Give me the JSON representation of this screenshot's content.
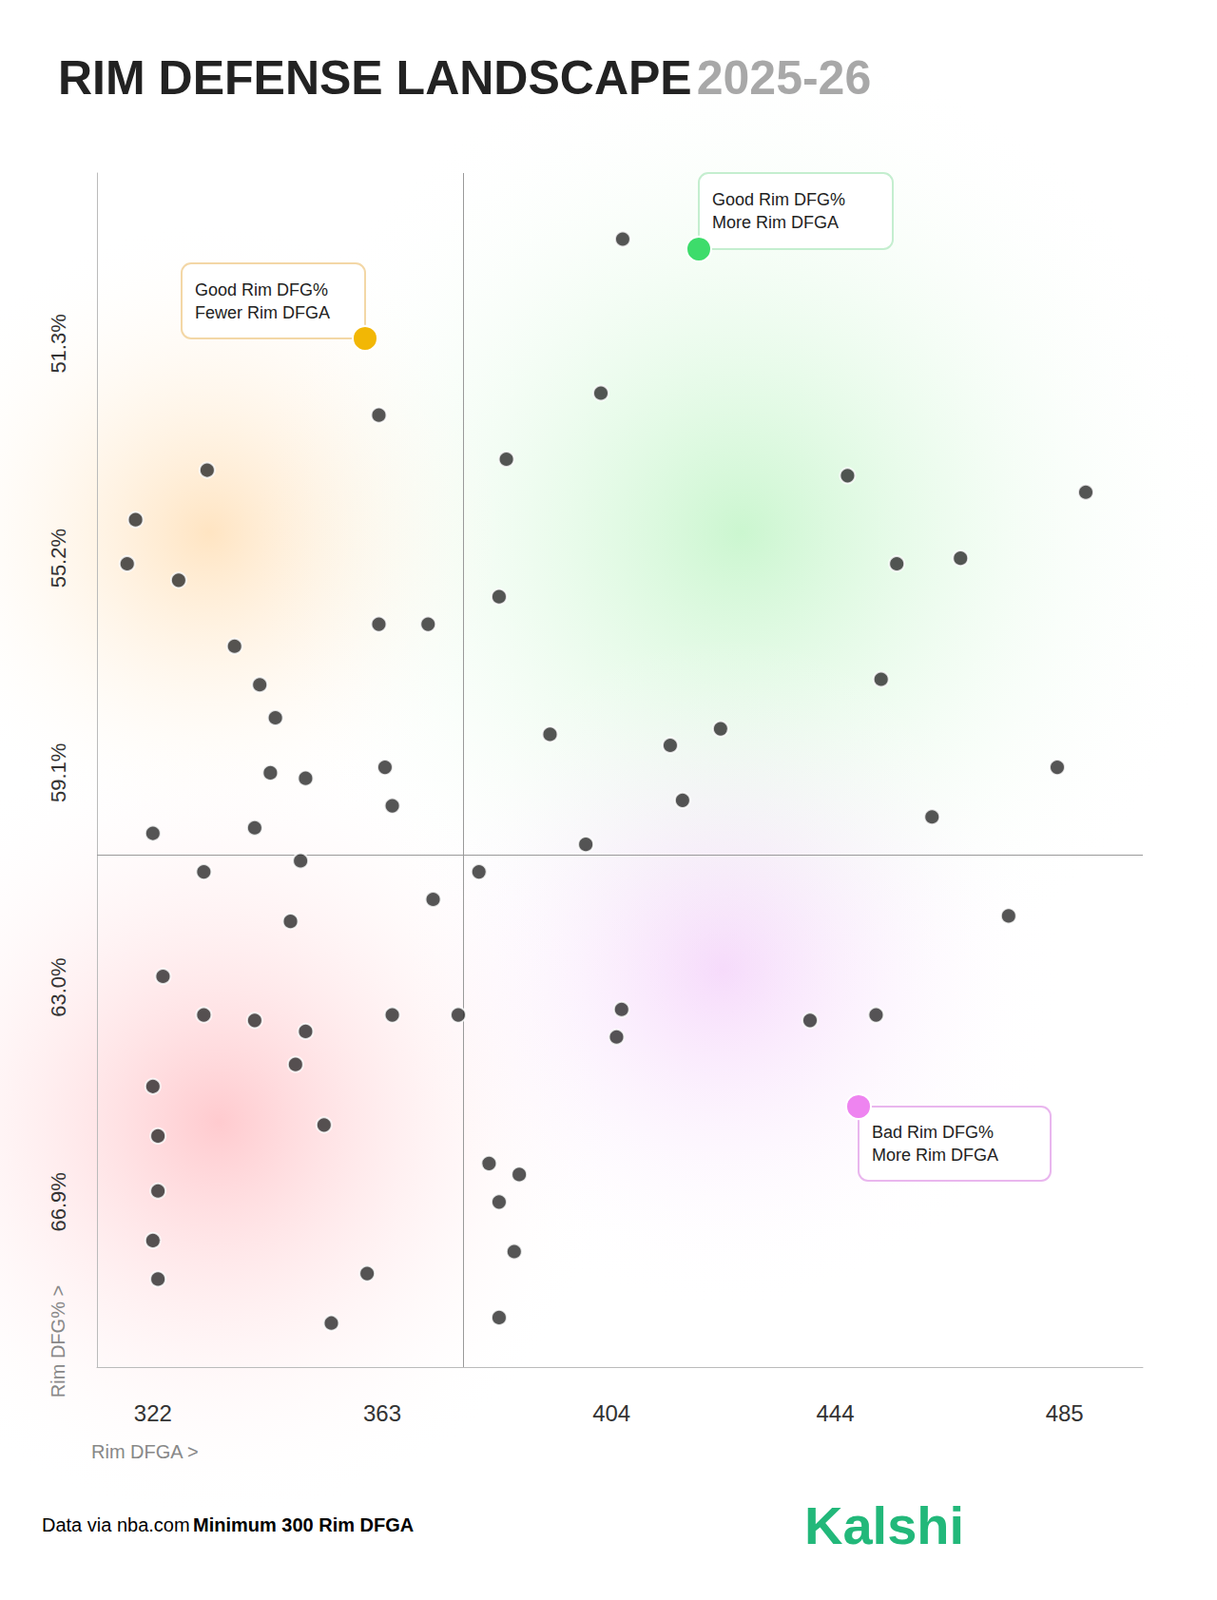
{
  "chart_data": {
    "type": "scatter",
    "title": "RIM DEFENSE LANDSCAPE",
    "subtitle": "2025-26",
    "x_label": "Rim DFGA >",
    "y_label": "Rim DFG% >",
    "source": "Data via nba.com",
    "note": "Minimum 300 Rim DFGA",
    "brand": "Kalshi",
    "annotations": [
      "Good Rim DFG%\nMore Rim DFGA",
      "Good Rim DFG%\nFewer Rim DFGA",
      "Bad Rim DFG%\nMore Rim DFGA"
    ],
    "xlim": [
      312,
      499
    ],
    "ylim": [
      69.9,
      48.2
    ],
    "xticks": [
      322,
      363,
      404,
      444,
      485
    ],
    "yticks": [
      {
        "value": 51.3,
        "label": "51.3%"
      },
      {
        "value": 55.2,
        "label": "55.2%"
      },
      {
        "value": 59.1,
        "label": "59.1%"
      },
      {
        "value": 63.0,
        "label": "63.0%"
      },
      {
        "value": 66.9,
        "label": "66.9%"
      }
    ],
    "reference_lines": {
      "x": 377.5,
      "y": 60.6
    },
    "grid": false,
    "marker": "circle",
    "color": "#2b2b2b",
    "x": [
      406,
      362.4,
      385.2,
      402.1,
      446.2,
      488.8,
      331.7,
      318.9,
      317.4,
      326.6,
      362.4,
      371.2,
      383.9,
      455,
      466.4,
      452.2,
      336.6,
      341.1,
      343.9,
      393,
      414.5,
      423.5,
      416.7,
      483.7,
      343,
      349.3,
      363.5,
      364.8,
      322,
      331.1,
      340.2,
      348.4,
      380.3,
      399.4,
      461.3,
      475,
      372.1,
      346.6,
      323.8,
      331.1,
      340.2,
      349.3,
      364.8,
      376.6,
      347.5,
      405.8,
      404.9,
      439.5,
      451.3,
      322,
      322.9,
      322.9,
      322,
      322.9,
      352.6,
      382.1,
      387.5,
      383.9,
      386.6,
      360.3,
      353.9,
      383.9
    ],
    "values": [
      49.4,
      52.6,
      53.4,
      52.2,
      53.7,
      54.0,
      53.6,
      54.5,
      55.3,
      55.6,
      56.4,
      56.4,
      55.9,
      55.3,
      55.2,
      57.4,
      56.8,
      57.5,
      58.1,
      58.4,
      58.6,
      58.3,
      59.6,
      59.0,
      59.1,
      59.2,
      59.0,
      59.7,
      60.2,
      60.9,
      60.1,
      60.7,
      60.9,
      60.4,
      59.9,
      61.7,
      61.4,
      61.8,
      62.8,
      63.5,
      63.6,
      63.8,
      63.5,
      63.5,
      64.4,
      63.4,
      63.9,
      63.6,
      63.5,
      64.8,
      65.7,
      66.7,
      67.6,
      68.3,
      65.5,
      66.2,
      66.4,
      66.9,
      67.8,
      68.2,
      69.1,
      69.0
    ]
  }
}
